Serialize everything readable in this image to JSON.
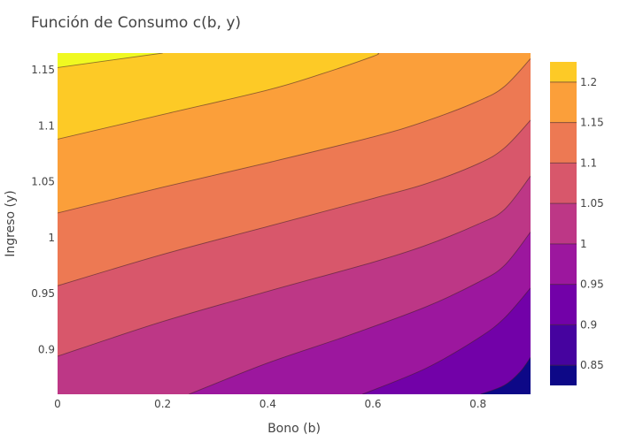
{
  "chart_data": {
    "type": "contour",
    "title": "Función de Consumo c(b, y)",
    "xlabel": "Bono (b)",
    "ylabel": "Ingreso (y)",
    "xlim": [
      0,
      0.9
    ],
    "ylim": [
      0.86,
      1.165
    ],
    "x_ticks": [
      {
        "value": 0,
        "label": "0"
      },
      {
        "value": 0.2,
        "label": "0.2"
      },
      {
        "value": 0.4,
        "label": "0.4"
      },
      {
        "value": 0.6,
        "label": "0.6"
      },
      {
        "value": 0.8,
        "label": "0.8"
      }
    ],
    "y_ticks": [
      {
        "value": 0.9,
        "label": "0.9"
      },
      {
        "value": 0.95,
        "label": "0.95"
      },
      {
        "value": 1.0,
        "label": "1"
      },
      {
        "value": 1.05,
        "label": "1.05"
      },
      {
        "value": 1.1,
        "label": "1.1"
      },
      {
        "value": 1.15,
        "label": "1.15"
      }
    ],
    "colorscale": "plasma",
    "colorbar": {
      "range": [
        0.825,
        1.225
      ],
      "levels": [
        0.85,
        0.9,
        0.95,
        1.0,
        1.05,
        1.1,
        1.15,
        1.2
      ],
      "labels": [
        "0.85",
        "0.9",
        "0.95",
        "1",
        "1.05",
        "1.1",
        "1.15",
        "1.2"
      ]
    },
    "band_colors": [
      "#0d0887",
      "#46039f",
      "#7201a8",
      "#9c179e",
      "#bd3786",
      "#d8576b",
      "#ed7953",
      "#fb9f3a",
      "#fdca26",
      "#f0f921"
    ],
    "contour_lines": [
      {
        "level": 0.85,
        "points": [
          [
            0.805,
            0.86
          ],
          [
            0.85,
            0.868
          ],
          [
            0.88,
            0.88
          ],
          [
            0.9,
            0.893
          ]
        ]
      },
      {
        "level": 0.9,
        "points": [
          [
            0.58,
            0.86
          ],
          [
            0.7,
            0.883
          ],
          [
            0.8,
            0.91
          ],
          [
            0.85,
            0.928
          ],
          [
            0.9,
            0.955
          ]
        ]
      },
      {
        "level": 0.95,
        "points": [
          [
            0.25,
            0.86
          ],
          [
            0.4,
            0.888
          ],
          [
            0.55,
            0.912
          ],
          [
            0.7,
            0.938
          ],
          [
            0.8,
            0.96
          ],
          [
            0.85,
            0.975
          ],
          [
            0.9,
            1.005
          ]
        ]
      },
      {
        "level": 1.0,
        "points": [
          [
            0,
            0.894
          ],
          [
            0.2,
            0.925
          ],
          [
            0.4,
            0.952
          ],
          [
            0.6,
            0.978
          ],
          [
            0.7,
            0.993
          ],
          [
            0.8,
            1.012
          ],
          [
            0.85,
            1.025
          ],
          [
            0.9,
            1.055
          ]
        ]
      },
      {
        "level": 1.05,
        "points": [
          [
            0,
            0.957
          ],
          [
            0.2,
            0.985
          ],
          [
            0.4,
            1.01
          ],
          [
            0.6,
            1.035
          ],
          [
            0.7,
            1.048
          ],
          [
            0.8,
            1.066
          ],
          [
            0.85,
            1.08
          ],
          [
            0.9,
            1.105
          ]
        ]
      },
      {
        "level": 1.1,
        "points": [
          [
            0,
            1.022
          ],
          [
            0.2,
            1.045
          ],
          [
            0.4,
            1.067
          ],
          [
            0.6,
            1.09
          ],
          [
            0.7,
            1.104
          ],
          [
            0.8,
            1.122
          ],
          [
            0.85,
            1.135
          ],
          [
            0.9,
            1.16
          ]
        ]
      },
      {
        "level": 1.15,
        "points": [
          [
            0,
            1.088
          ],
          [
            0.2,
            1.11
          ],
          [
            0.4,
            1.132
          ],
          [
            0.5,
            1.146
          ],
          [
            0.6,
            1.162
          ],
          [
            0.61,
            1.165
          ]
        ]
      },
      {
        "level": 1.2,
        "points": [
          [
            0.0,
            1.152
          ],
          [
            0.2,
            1.165
          ]
        ]
      }
    ]
  }
}
